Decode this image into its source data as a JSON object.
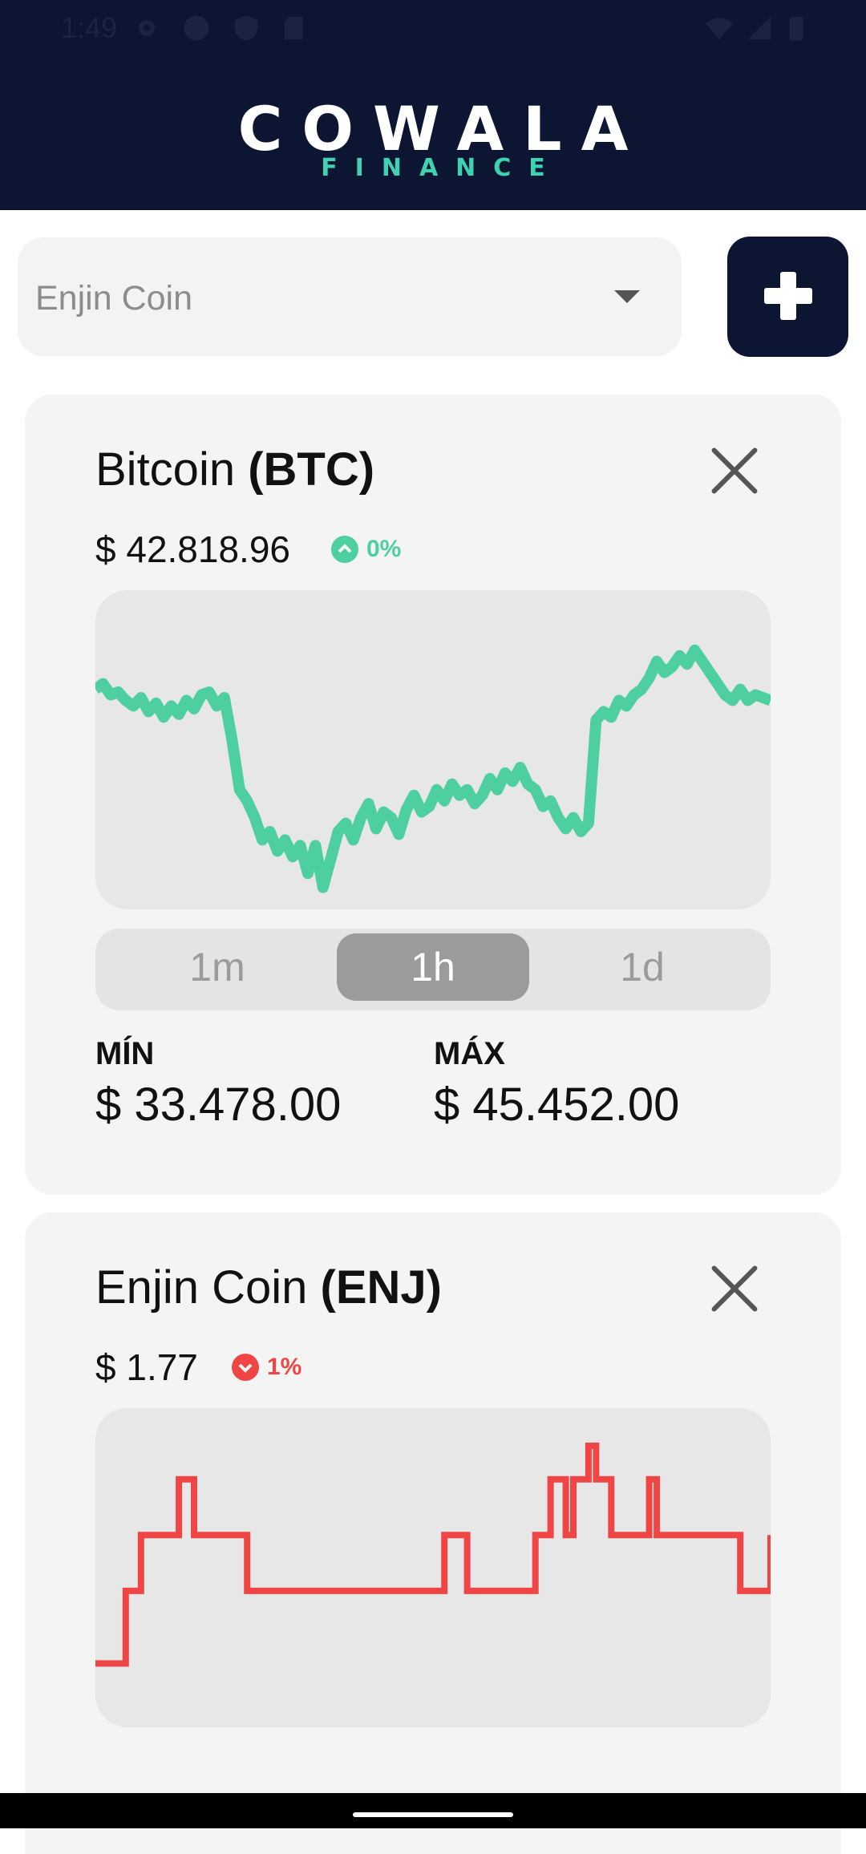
{
  "status_bar": {
    "time": "1:49"
  },
  "header": {
    "logo_main": "COWALA",
    "logo_sub": "FINANCE"
  },
  "selector": {
    "value": "Enjin Coin"
  },
  "colors": {
    "up": "#4ecfa0",
    "down": "#ef4545",
    "navy": "#0c1633"
  },
  "cards": [
    {
      "name": "Bitcoin",
      "symbol": "(BTC)",
      "price": "$ 42.818.96",
      "change": "0%",
      "direction": "up",
      "intervals": [
        "1m",
        "1h",
        "1d"
      ],
      "selected_interval": "1h",
      "min_label": "MÍN",
      "min_value": "$ 33.478.00",
      "max_label": "MÁX",
      "max_value": "$ 45.452.00",
      "chart_data": {
        "type": "line",
        "values": [
          0.76,
          0.78,
          0.74,
          0.75,
          0.72,
          0.7,
          0.73,
          0.68,
          0.71,
          0.66,
          0.7,
          0.67,
          0.72,
          0.69,
          0.74,
          0.75,
          0.7,
          0.73,
          0.58,
          0.4,
          0.36,
          0.3,
          0.22,
          0.25,
          0.18,
          0.22,
          0.16,
          0.2,
          0.1,
          0.2,
          0.05,
          0.15,
          0.25,
          0.28,
          0.22,
          0.3,
          0.35,
          0.26,
          0.32,
          0.3,
          0.24,
          0.33,
          0.38,
          0.32,
          0.34,
          0.4,
          0.36,
          0.42,
          0.38,
          0.4,
          0.35,
          0.38,
          0.44,
          0.4,
          0.46,
          0.43,
          0.48,
          0.42,
          0.4,
          0.34,
          0.36,
          0.3,
          0.26,
          0.3,
          0.25,
          0.28,
          0.65,
          0.68,
          0.66,
          0.72,
          0.7,
          0.74,
          0.76,
          0.8,
          0.86,
          0.82,
          0.84,
          0.88,
          0.85,
          0.9,
          0.86,
          0.82,
          0.78,
          0.74,
          0.72,
          0.76,
          0.72,
          0.74,
          0.73,
          0.72
        ]
      }
    },
    {
      "name": "Enjin Coin",
      "symbol": "(ENJ)",
      "price": "$ 1.77",
      "change": "1%",
      "direction": "down",
      "chart_data": {
        "type": "line",
        "step": true,
        "values": [
          0.2,
          0.2,
          0.2,
          0.2,
          0.46,
          0.46,
          0.66,
          0.66,
          0.66,
          0.66,
          0.66,
          0.86,
          0.86,
          0.66,
          0.66,
          0.66,
          0.66,
          0.66,
          0.66,
          0.66,
          0.46,
          0.46,
          0.46,
          0.46,
          0.46,
          0.46,
          0.46,
          0.46,
          0.46,
          0.46,
          0.46,
          0.46,
          0.46,
          0.46,
          0.46,
          0.46,
          0.46,
          0.46,
          0.46,
          0.46,
          0.46,
          0.46,
          0.46,
          0.46,
          0.46,
          0.46,
          0.66,
          0.66,
          0.66,
          0.46,
          0.46,
          0.46,
          0.46,
          0.46,
          0.46,
          0.46,
          0.46,
          0.46,
          0.66,
          0.66,
          0.86,
          0.86,
          0.66,
          0.86,
          0.86,
          0.98,
          0.86,
          0.86,
          0.66,
          0.66,
          0.66,
          0.66,
          0.66,
          0.86,
          0.66,
          0.66,
          0.66,
          0.66,
          0.66,
          0.66,
          0.66,
          0.66,
          0.66,
          0.66,
          0.66,
          0.46,
          0.46,
          0.46,
          0.46,
          0.66
        ]
      }
    }
  ]
}
